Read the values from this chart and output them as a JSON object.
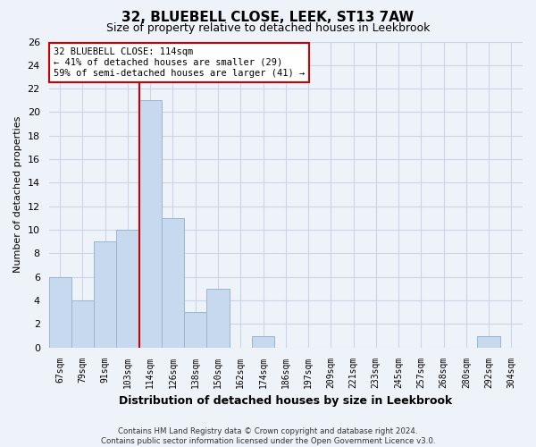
{
  "title": "32, BLUEBELL CLOSE, LEEK, ST13 7AW",
  "subtitle": "Size of property relative to detached houses in Leekbrook",
  "xlabel": "Distribution of detached houses by size in Leekbrook",
  "ylabel": "Number of detached properties",
  "categories": [
    "67sqm",
    "79sqm",
    "91sqm",
    "103sqm",
    "114sqm",
    "126sqm",
    "138sqm",
    "150sqm",
    "162sqm",
    "174sqm",
    "186sqm",
    "197sqm",
    "209sqm",
    "221sqm",
    "233sqm",
    "245sqm",
    "257sqm",
    "268sqm",
    "280sqm",
    "292sqm",
    "304sqm"
  ],
  "values": [
    6,
    4,
    9,
    10,
    21,
    11,
    3,
    5,
    0,
    1,
    0,
    0,
    0,
    0,
    0,
    0,
    0,
    0,
    0,
    1,
    0
  ],
  "highlight_index": 4,
  "bar_color": "#c6d9ee",
  "bar_edgecolor": "#9bb5d0",
  "highlight_line_color": "#cc0000",
  "annotation_text": "32 BLUEBELL CLOSE: 114sqm\n← 41% of detached houses are smaller (29)\n59% of semi-detached houses are larger (41) →",
  "annotation_box_facecolor": "#ffffff",
  "annotation_box_edgecolor": "#cc0000",
  "ylim": [
    0,
    26
  ],
  "yticks": [
    0,
    2,
    4,
    6,
    8,
    10,
    12,
    14,
    16,
    18,
    20,
    22,
    24,
    26
  ],
  "grid_color": "#ccd5e5",
  "background_color": "#eef2f9",
  "footer_line1": "Contains HM Land Registry data © Crown copyright and database right 2024.",
  "footer_line2": "Contains public sector information licensed under the Open Government Licence v3.0."
}
